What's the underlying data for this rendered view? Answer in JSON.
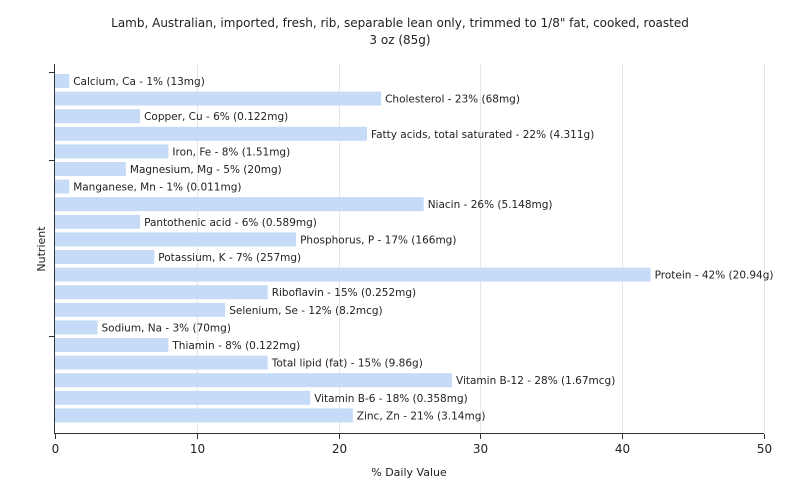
{
  "chart_data": {
    "type": "bar",
    "orientation": "horizontal",
    "title_lines": [
      "Lamb, Australian, imported, fresh, rib, separable lean only, trimmed to 1/8\" fat, cooked, roasted",
      "3 oz (85g)"
    ],
    "xlabel": "% Daily Value",
    "ylabel": "Nutrient",
    "xlim": [
      0,
      50
    ],
    "xticks": [
      0,
      10,
      20,
      30,
      40,
      50
    ],
    "grid": true,
    "bar_color": "#c6dbf7",
    "categories": [
      "Calcium, Ca",
      "Cholesterol",
      "Copper, Cu",
      "Fatty acids, total saturated",
      "Iron, Fe",
      "Magnesium, Mg",
      "Manganese, Mn",
      "Niacin",
      "Pantothenic acid",
      "Phosphorus, P",
      "Potassium, K",
      "Protein",
      "Riboflavin",
      "Selenium, Se",
      "Sodium, Na",
      "Thiamin",
      "Total lipid (fat)",
      "Vitamin B-12",
      "Vitamin B-6",
      "Zinc, Zn"
    ],
    "values": [
      1,
      23,
      6,
      22,
      8,
      5,
      1,
      26,
      6,
      17,
      7,
      42,
      15,
      12,
      3,
      8,
      15,
      28,
      18,
      21
    ],
    "labels": [
      "Calcium, Ca - 1% (13mg)",
      "Cholesterol - 23% (68mg)",
      "Copper, Cu - 6% (0.122mg)",
      "Fatty acids, total saturated - 22% (4.311g)",
      "Iron, Fe - 8% (1.51mg)",
      "Magnesium, Mg - 5% (20mg)",
      "Manganese, Mn - 1% (0.011mg)",
      "Niacin - 26% (5.148mg)",
      "Pantothenic acid - 6% (0.589mg)",
      "Phosphorus, P - 17% (166mg)",
      "Potassium, K - 7% (257mg)",
      "Protein - 42% (20.94g)",
      "Riboflavin - 15% (0.252mg)",
      "Selenium, Se - 12% (8.2mcg)",
      "Sodium, Na - 3% (70mg)",
      "Thiamin - 8% (0.122mg)",
      "Total lipid (fat) - 15% (9.86g)",
      "Vitamin B-12 - 28% (1.67mcg)",
      "Vitamin B-6 - 18% (0.358mg)",
      "Zinc, Zn - 21% (3.14mg)"
    ]
  }
}
